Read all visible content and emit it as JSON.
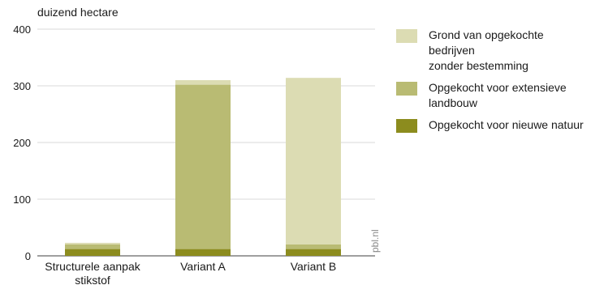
{
  "chart_data": {
    "type": "bar",
    "stacked": true,
    "ylabel": "duizend hectare",
    "ylim": [
      0,
      400
    ],
    "yticks": [
      0,
      100,
      200,
      300,
      400
    ],
    "categories": [
      "Structurele aanpak\nstikstof",
      "Variant A",
      "Variant B"
    ],
    "series": [
      {
        "name": "Opgekocht voor nieuwe natuur",
        "color": "#8c8c1e",
        "values": [
          12,
          12,
          12
        ]
      },
      {
        "name": "Opgekocht voor extensieve\n landbouw",
        "color": "#b9bb73",
        "values": [
          8,
          290,
          8
        ]
      },
      {
        "name": "Grond van opgekochte bedrijven\nzonder bestemming",
        "color": "#dcdcb3",
        "values": [
          3,
          8,
          294
        ]
      }
    ],
    "grid": true,
    "legend": "right"
  },
  "watermark": "pbl.nl"
}
